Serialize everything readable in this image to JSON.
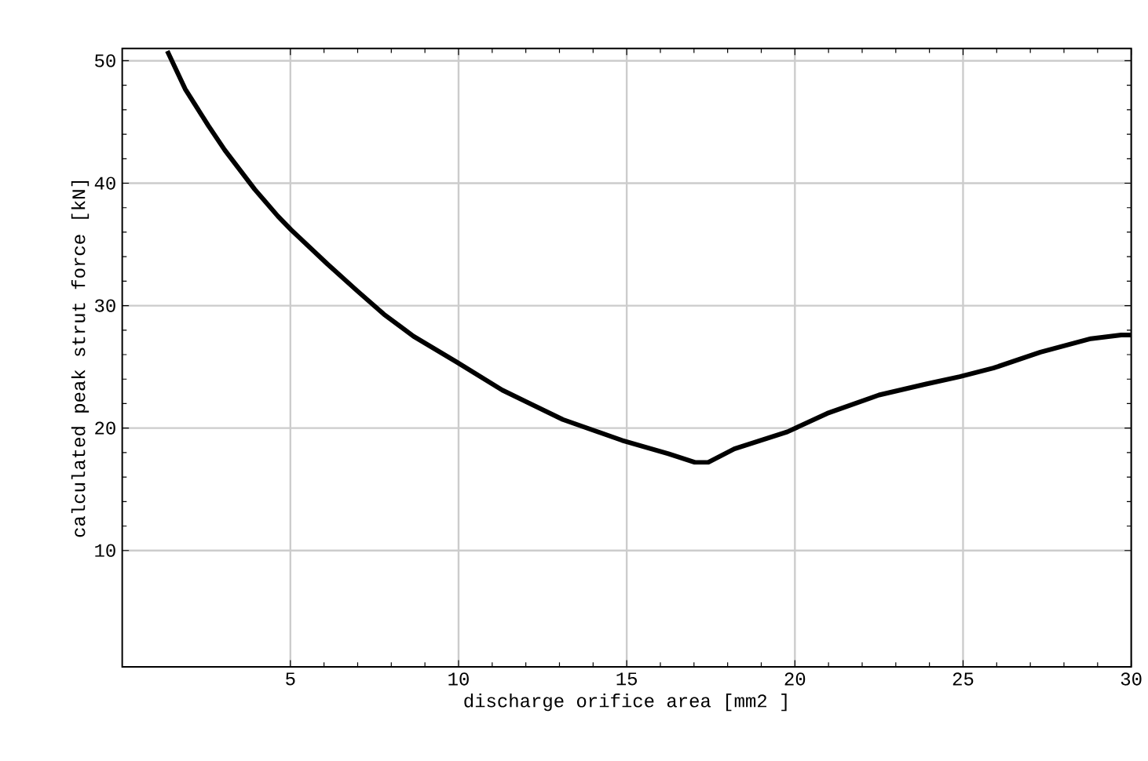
{
  "chart_data": {
    "type": "line",
    "xlabel": "discharge   orifice   area   [mm2 ]",
    "ylabel": "calculated peak strut force [kN]",
    "xlim": [
      0,
      30
    ],
    "ylim": [
      0.5,
      51
    ],
    "xticks": [
      5,
      10,
      15,
      20,
      25,
      30
    ],
    "yticks": [
      10,
      20,
      30,
      40,
      50
    ],
    "grid": true,
    "marker": "none",
    "line_style": "solid",
    "series": [
      {
        "color": "#000000",
        "x": [
          1.34,
          1.87,
          2.56,
          3.05,
          3.94,
          4.63,
          5.02,
          6.1,
          6.99,
          7.78,
          8.66,
          9.94,
          11.3,
          13.1,
          14.86,
          16.24,
          17.03,
          17.42,
          18.2,
          19.78,
          20.96,
          22.5,
          23.9,
          24.9,
          25.9,
          27.3,
          28.8,
          29.7,
          30
        ],
        "values": [
          50.8,
          47.7,
          44.7,
          42.7,
          39.5,
          37.3,
          36.2,
          33.4,
          31.2,
          29.3,
          27.5,
          25.4,
          23.1,
          20.7,
          19.0,
          17.9,
          17.2,
          17.2,
          18.3,
          19.7,
          21.2,
          22.7,
          23.6,
          24.2,
          24.9,
          26.2,
          27.3,
          27.6,
          27.6
        ]
      }
    ]
  }
}
